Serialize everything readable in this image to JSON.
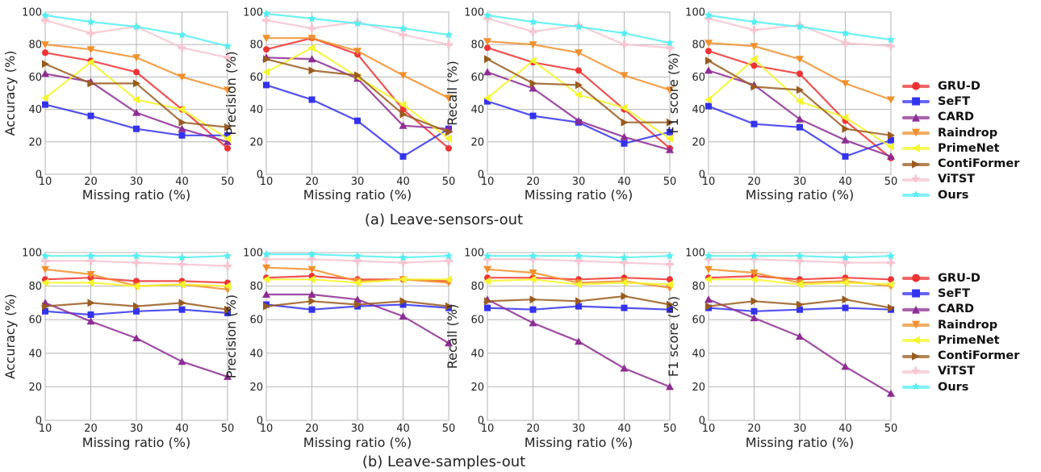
{
  "captions": {
    "a": "(a) Leave-sensors-out",
    "b": "(b) Leave-samples-out"
  },
  "legend": [
    {
      "name": "GRU-D",
      "color": "#ee3333",
      "marker": "circle"
    },
    {
      "name": "SeFT",
      "color": "#3333ee",
      "marker": "square"
    },
    {
      "name": "CARD",
      "color": "#8e2c94",
      "marker": "triangle-up"
    },
    {
      "name": "Raindrop",
      "color": "#f28f2c",
      "marker": "triangle-down"
    },
    {
      "name": "PrimeNet",
      "color": "#f5f52c",
      "marker": "triangle-left"
    },
    {
      "name": "ContiFormer",
      "color": "#9a5b1e",
      "marker": "triangle-right"
    },
    {
      "name": "ViTST",
      "color": "#f7c4cf",
      "marker": "plus"
    },
    {
      "name": "Ours",
      "color": "#55eef2",
      "marker": "star"
    }
  ],
  "chart_data": [
    {
      "type": "line",
      "group": "a",
      "xlabel": "Missing ratio (%)",
      "ylabel": "Accuracy (%)",
      "x": [
        10,
        20,
        30,
        40,
        50
      ],
      "xlim": [
        10,
        50
      ],
      "ylim": [
        0,
        100
      ],
      "xticks": [
        "10",
        "20",
        "30",
        "40",
        "50"
      ],
      "yticks": [
        "0",
        "20",
        "40",
        "60",
        "80",
        "100"
      ],
      "grid": true,
      "series": [
        {
          "name": "GRU-D",
          "values": [
            75,
            70,
            63,
            40,
            16
          ]
        },
        {
          "name": "SeFT",
          "values": [
            43,
            36,
            28,
            24,
            24
          ]
        },
        {
          "name": "CARD",
          "values": [
            62,
            57,
            38,
            28,
            20
          ]
        },
        {
          "name": "Raindrop",
          "values": [
            80,
            77,
            72,
            60,
            52
          ]
        },
        {
          "name": "PrimeNet",
          "values": [
            47,
            69,
            46,
            40,
            22
          ]
        },
        {
          "name": "ContiFormer",
          "values": [
            68,
            56,
            56,
            32,
            29
          ]
        },
        {
          "name": "ViTST",
          "values": [
            95,
            87,
            91,
            78,
            72
          ]
        },
        {
          "name": "Ours",
          "values": [
            98,
            94,
            91,
            86,
            79
          ]
        }
      ]
    },
    {
      "type": "line",
      "group": "a",
      "xlabel": "Missing ratio (%)",
      "ylabel": "Precision (%)",
      "x": [
        10,
        20,
        30,
        40,
        50
      ],
      "xlim": [
        10,
        50
      ],
      "ylim": [
        0,
        100
      ],
      "xticks": [
        "10",
        "20",
        "30",
        "40",
        "50"
      ],
      "yticks": [
        "0",
        "20",
        "40",
        "60",
        "80",
        "100"
      ],
      "grid": true,
      "series": [
        {
          "name": "GRU-D",
          "values": [
            77,
            84,
            74,
            40,
            16
          ]
        },
        {
          "name": "SeFT",
          "values": [
            55,
            46,
            33,
            11,
            28
          ]
        },
        {
          "name": "CARD",
          "values": [
            72,
            71,
            59,
            30,
            28
          ]
        },
        {
          "name": "Raindrop",
          "values": [
            84,
            84,
            76,
            61,
            47
          ]
        },
        {
          "name": "PrimeNet",
          "values": [
            63,
            78,
            60,
            43,
            22
          ]
        },
        {
          "name": "ContiFormer",
          "values": [
            71,
            64,
            61,
            37,
            26
          ]
        },
        {
          "name": "ViTST",
          "values": [
            95,
            90,
            94,
            86,
            80
          ]
        },
        {
          "name": "Ours",
          "values": [
            99,
            96,
            93,
            90,
            86
          ]
        }
      ]
    },
    {
      "type": "line",
      "group": "a",
      "xlabel": "Missing ratio (%)",
      "ylabel": "Recall (%)",
      "x": [
        10,
        20,
        30,
        40,
        50
      ],
      "xlim": [
        10,
        50
      ],
      "ylim": [
        0,
        100
      ],
      "xticks": [
        "10",
        "20",
        "30",
        "40",
        "50"
      ],
      "yticks": [
        "0",
        "20",
        "40",
        "60",
        "80",
        "100"
      ],
      "grid": true,
      "series": [
        {
          "name": "GRU-D",
          "values": [
            78,
            69,
            64,
            40,
            16
          ]
        },
        {
          "name": "SeFT",
          "values": [
            45,
            36,
            32,
            19,
            26
          ]
        },
        {
          "name": "CARD",
          "values": [
            63,
            53,
            33,
            23,
            15
          ]
        },
        {
          "name": "Raindrop",
          "values": [
            82,
            80,
            75,
            61,
            52
          ]
        },
        {
          "name": "PrimeNet",
          "values": [
            47,
            70,
            49,
            41,
            22
          ]
        },
        {
          "name": "ContiFormer",
          "values": [
            71,
            56,
            55,
            32,
            32
          ]
        },
        {
          "name": "ViTST",
          "values": [
            96,
            88,
            92,
            80,
            78
          ]
        },
        {
          "name": "Ours",
          "values": [
            98,
            94,
            91,
            87,
            81
          ]
        }
      ]
    },
    {
      "type": "line",
      "group": "a",
      "xlabel": "Missing ratio (%)",
      "ylabel": "F1 score (%)",
      "x": [
        10,
        20,
        30,
        40,
        50
      ],
      "xlim": [
        10,
        50
      ],
      "ylim": [
        0,
        100
      ],
      "xticks": [
        "10",
        "20",
        "30",
        "40",
        "50"
      ],
      "yticks": [
        "0",
        "20",
        "40",
        "60",
        "80",
        "100"
      ],
      "grid": true,
      "series": [
        {
          "name": "GRU-D",
          "values": [
            76,
            67,
            62,
            33,
            10
          ]
        },
        {
          "name": "SeFT",
          "values": [
            42,
            31,
            29,
            11,
            21
          ]
        },
        {
          "name": "CARD",
          "values": [
            64,
            55,
            34,
            21,
            11
          ]
        },
        {
          "name": "Raindrop",
          "values": [
            81,
            79,
            71,
            56,
            46
          ]
        },
        {
          "name": "PrimeNet",
          "values": [
            46,
            71,
            45,
            35,
            17
          ]
        },
        {
          "name": "ContiFormer",
          "values": [
            70,
            54,
            52,
            28,
            24
          ]
        },
        {
          "name": "ViTST",
          "values": [
            96,
            89,
            92,
            81,
            79
          ]
        },
        {
          "name": "Ours",
          "values": [
            98,
            94,
            91,
            87,
            83
          ]
        }
      ]
    },
    {
      "type": "line",
      "group": "b",
      "xlabel": "Missing ratio (%)",
      "ylabel": "Accuracy (%)",
      "x": [
        10,
        20,
        30,
        40,
        50
      ],
      "xlim": [
        10,
        50
      ],
      "ylim": [
        0,
        100
      ],
      "xticks": [
        "10",
        "20",
        "30",
        "40",
        "50"
      ],
      "yticks": [
        "0",
        "20",
        "40",
        "60",
        "80",
        "100"
      ],
      "grid": true,
      "series": [
        {
          "name": "GRU-D",
          "values": [
            84,
            85,
            83,
            83,
            82
          ]
        },
        {
          "name": "SeFT",
          "values": [
            65,
            63,
            65,
            66,
            64
          ]
        },
        {
          "name": "CARD",
          "values": [
            70,
            59,
            49,
            35,
            26
          ]
        },
        {
          "name": "Raindrop",
          "values": [
            90,
            87,
            80,
            81,
            78
          ]
        },
        {
          "name": "PrimeNet",
          "values": [
            82,
            82,
            80,
            81,
            80
          ]
        },
        {
          "name": "ContiFormer",
          "values": [
            68,
            70,
            68,
            70,
            66
          ]
        },
        {
          "name": "ViTST",
          "values": [
            95,
            95,
            94,
            93,
            92
          ]
        },
        {
          "name": "Ours",
          "values": [
            98,
            98,
            98,
            97,
            98
          ]
        }
      ]
    },
    {
      "type": "line",
      "group": "b",
      "xlabel": "Missing ratio (%)",
      "ylabel": "Precision (%)",
      "x": [
        10,
        20,
        30,
        40,
        50
      ],
      "xlim": [
        10,
        50
      ],
      "ylim": [
        0,
        100
      ],
      "xticks": [
        "10",
        "20",
        "30",
        "40",
        "50"
      ],
      "yticks": [
        "0",
        "20",
        "40",
        "60",
        "80",
        "100"
      ],
      "grid": true,
      "series": [
        {
          "name": "GRU-D",
          "values": [
            85,
            86,
            84,
            84,
            83
          ]
        },
        {
          "name": "SeFT",
          "values": [
            69,
            66,
            68,
            69,
            67
          ]
        },
        {
          "name": "CARD",
          "values": [
            75,
            75,
            72,
            62,
            46
          ]
        },
        {
          "name": "Raindrop",
          "values": [
            91,
            90,
            83,
            84,
            82
          ]
        },
        {
          "name": "PrimeNet",
          "values": [
            84,
            84,
            82,
            84,
            84
          ]
        },
        {
          "name": "ContiFormer",
          "values": [
            68,
            71,
            69,
            71,
            68
          ]
        },
        {
          "name": "ViTST",
          "values": [
            96,
            96,
            95,
            94,
            95
          ]
        },
        {
          "name": "Ours",
          "values": [
            99,
            99,
            98,
            97,
            98
          ]
        }
      ]
    },
    {
      "type": "line",
      "group": "b",
      "xlabel": "Missing ratio (%)",
      "ylabel": "Recall (%)",
      "x": [
        10,
        20,
        30,
        40,
        50
      ],
      "xlim": [
        10,
        50
      ],
      "ylim": [
        0,
        100
      ],
      "xticks": [
        "10",
        "20",
        "30",
        "40",
        "50"
      ],
      "yticks": [
        "0",
        "20",
        "40",
        "60",
        "80",
        "100"
      ],
      "grid": true,
      "series": [
        {
          "name": "GRU-D",
          "values": [
            85,
            85,
            84,
            85,
            84
          ]
        },
        {
          "name": "SeFT",
          "values": [
            67,
            66,
            68,
            67,
            66
          ]
        },
        {
          "name": "CARD",
          "values": [
            72,
            58,
            47,
            31,
            20
          ]
        },
        {
          "name": "Raindrop",
          "values": [
            90,
            88,
            82,
            83,
            79
          ]
        },
        {
          "name": "PrimeNet",
          "values": [
            83,
            84,
            81,
            82,
            81
          ]
        },
        {
          "name": "ContiFormer",
          "values": [
            71,
            72,
            71,
            74,
            69
          ]
        },
        {
          "name": "ViTST",
          "values": [
            96,
            96,
            95,
            94,
            93
          ]
        },
        {
          "name": "Ours",
          "values": [
            98,
            98,
            98,
            97,
            98
          ]
        }
      ]
    },
    {
      "type": "line",
      "group": "b",
      "xlabel": "Missing ratio (%)",
      "ylabel": "F1 score (%)",
      "x": [
        10,
        20,
        30,
        40,
        50
      ],
      "xlim": [
        10,
        50
      ],
      "ylim": [
        0,
        100
      ],
      "xticks": [
        "10",
        "20",
        "30",
        "40",
        "50"
      ],
      "yticks": [
        "0",
        "20",
        "40",
        "60",
        "80",
        "100"
      ],
      "grid": true,
      "series": [
        {
          "name": "GRU-D",
          "values": [
            85,
            86,
            84,
            85,
            84
          ]
        },
        {
          "name": "SeFT",
          "values": [
            67,
            65,
            66,
            67,
            66
          ]
        },
        {
          "name": "CARD",
          "values": [
            72,
            61,
            50,
            32,
            16
          ]
        },
        {
          "name": "Raindrop",
          "values": [
            90,
            88,
            82,
            83,
            80
          ]
        },
        {
          "name": "PrimeNet",
          "values": [
            84,
            84,
            81,
            82,
            81
          ]
        },
        {
          "name": "ContiFormer",
          "values": [
            68,
            71,
            69,
            72,
            67
          ]
        },
        {
          "name": "ViTST",
          "values": [
            96,
            96,
            95,
            94,
            94
          ]
        },
        {
          "name": "Ours",
          "values": [
            98,
            98,
            98,
            97,
            98
          ]
        }
      ]
    }
  ]
}
